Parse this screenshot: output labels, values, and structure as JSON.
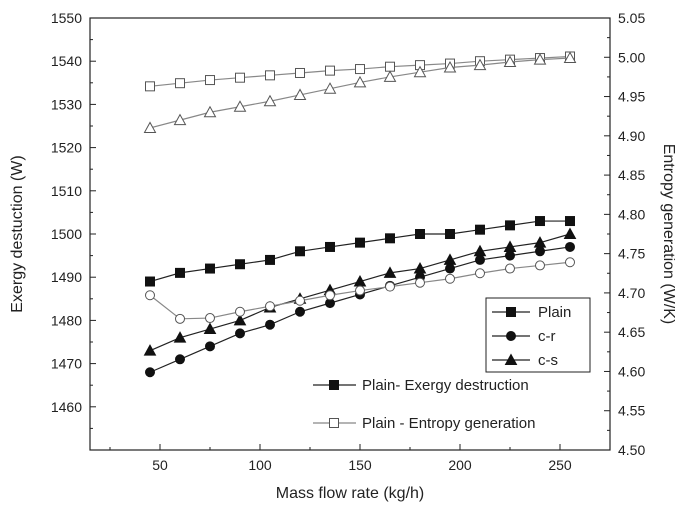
{
  "chart_data": {
    "type": "line",
    "xlabel": "Mass flow rate (kg/h)",
    "ylabel": "Exergy destuction (W)",
    "y2label": "Entropy generation (W/K)",
    "xlim": [
      15,
      275
    ],
    "ylim": [
      1450,
      1550
    ],
    "y2lim": [
      4.5,
      5.05
    ],
    "x_ticks": [
      "50",
      "100",
      "150",
      "200",
      "250"
    ],
    "y_ticks": [
      "1460",
      "1470",
      "1480",
      "1490",
      "1500",
      "1510",
      "1520",
      "1530",
      "1540",
      "1550"
    ],
    "y2_ticks": [
      "4.50",
      "4.55",
      "4.60",
      "4.65",
      "4.70",
      "4.75",
      "4.80",
      "4.85",
      "4.90",
      "4.95",
      "5.00",
      "5.05"
    ],
    "grid": false,
    "x": [
      45,
      60,
      75,
      90,
      105,
      120,
      135,
      150,
      165,
      180,
      195,
      210,
      225,
      240,
      255
    ],
    "series": [
      {
        "name": "Plain",
        "axis": "left",
        "marker": "square-filled",
        "values": [
          1489,
          1491,
          1492,
          1493,
          1494,
          1496,
          1497,
          1498,
          1499,
          1500,
          1500,
          1501,
          1502,
          1503,
          1503
        ]
      },
      {
        "name": "c-r",
        "axis": "left",
        "marker": "circle-filled",
        "values": [
          1468,
          1471,
          1474,
          1477,
          1479,
          1482,
          1484,
          1486,
          1488,
          1490,
          1492,
          1494,
          1495,
          1496,
          1497
        ]
      },
      {
        "name": "c-s",
        "axis": "left",
        "marker": "triangle-filled",
        "values": [
          1473,
          1476,
          1478,
          1480,
          1483,
          1485,
          1487,
          1489,
          1491,
          1492,
          1494,
          1496,
          1497,
          1498,
          1500
        ]
      },
      {
        "name": "",
        "axis": "right",
        "marker": "square-open",
        "values": [
          4.963,
          4.967,
          4.971,
          4.974,
          4.977,
          4.98,
          4.983,
          4.985,
          4.988,
          4.99,
          4.992,
          4.995,
          4.997,
          4.999,
          5.001
        ]
      },
      {
        "name": "",
        "axis": "right",
        "marker": "triangle-open",
        "values": [
          4.91,
          4.92,
          4.93,
          4.937,
          4.944,
          4.952,
          4.96,
          4.968,
          4.975,
          4.981,
          4.987,
          4.99,
          4.994,
          4.997,
          4.999
        ]
      },
      {
        "name": "",
        "axis": "right",
        "marker": "circle-open",
        "values": [
          4.697,
          4.667,
          4.668,
          4.676,
          4.683,
          4.69,
          4.697,
          4.703,
          4.708,
          4.713,
          4.718,
          4.725,
          4.731,
          4.735,
          4.739
        ]
      }
    ],
    "legend": {
      "placement": "bottom-right",
      "inner_box": [
        "Plain",
        "c-r",
        "c-s"
      ],
      "outer_entries": [
        {
          "label": "Plain- Exergy destruction",
          "marker": "square-filled"
        },
        {
          "label": "Plain - Entropy generation",
          "marker": "square-open"
        }
      ]
    }
  }
}
